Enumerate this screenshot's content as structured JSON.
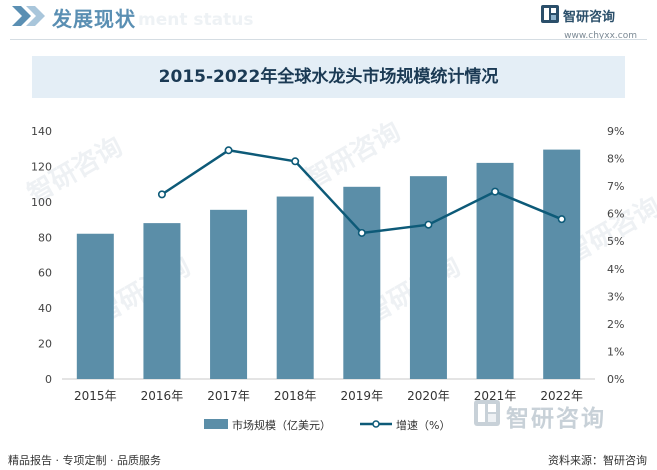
{
  "header": {
    "title": "发展现状",
    "title_en": "ment status",
    "brand_name": "智研咨询",
    "brand_url": "www.chyxx.com"
  },
  "watermark": "智研咨询",
  "chart_data": {
    "type": "bar",
    "title": "2015-2022年全球水龙头市场规模统计情况",
    "categories": [
      "2015年",
      "2016年",
      "2017年",
      "2018年",
      "2019年",
      "2020年",
      "2021年",
      "2022年"
    ],
    "series": [
      {
        "name": "市场规模（亿美元）",
        "type": "bar",
        "axis": "left",
        "color": "#5b8ea8",
        "values": [
          82,
          88,
          95.5,
          103,
          108.5,
          114.5,
          122,
          129.5
        ]
      },
      {
        "name": "增速（%）",
        "type": "line",
        "axis": "right",
        "color": "#0d5a78",
        "values": [
          null,
          6.7,
          8.3,
          7.9,
          5.3,
          5.6,
          6.8,
          5.8
        ]
      }
    ],
    "y_left": {
      "min": 0,
      "max": 140,
      "ticks": [
        "0",
        "20",
        "40",
        "60",
        "80",
        "100",
        "120",
        "140"
      ]
    },
    "y_right": {
      "min": 0,
      "max": 9,
      "ticks": [
        "0%",
        "1%",
        "2%",
        "3%",
        "4%",
        "5%",
        "6%",
        "7%",
        "8%",
        "9%"
      ]
    },
    "grid": false,
    "legend_position": "bottom"
  },
  "footer": {
    "left_text": "精品报告 · 专项定制 · 品质服务",
    "source_text": "资料来源：智研咨询"
  }
}
